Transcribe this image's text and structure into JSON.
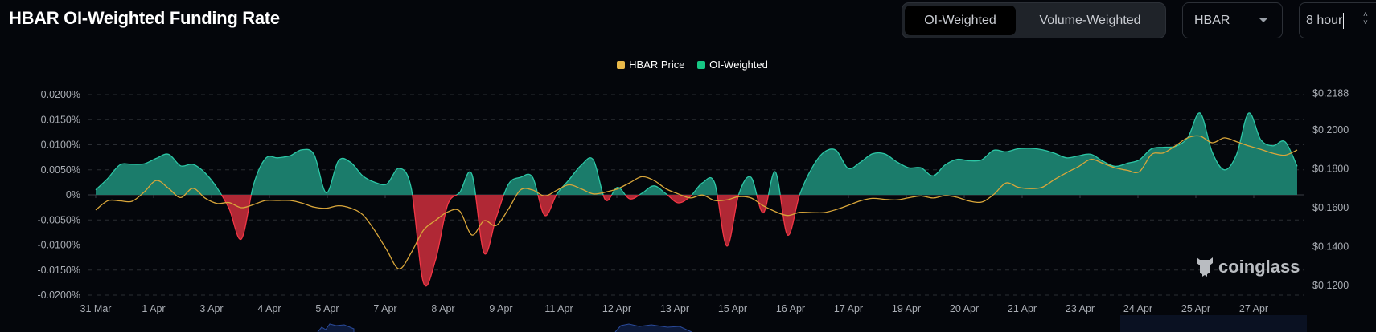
{
  "header": {
    "title": "HBAR OI-Weighted Funding Rate",
    "toggle": {
      "options": [
        "OI-Weighted",
        "Volume-Weighted"
      ],
      "active": "OI-Weighted"
    },
    "coin_select": {
      "value": "HBAR"
    },
    "interval_input": {
      "value": "8 hour"
    }
  },
  "watermark": "coinglass",
  "colors": {
    "background": "#04060b",
    "positive": "#1b7c6b",
    "positive_line": "#2cc6a5",
    "negative": "#b02835",
    "negative_line": "#f23645",
    "price": "#d9a63a"
  },
  "chart_data": {
    "type": "area",
    "legend": {
      "position": "top-center",
      "items": [
        {
          "label": "HBAR Price",
          "color": "#e9b949"
        },
        {
          "label": "OI-Weighted",
          "color": "#16c784"
        }
      ]
    },
    "grid": true,
    "x_tick_labels": [
      "31 Mar",
      "1 Apr",
      "3 Apr",
      "4 Apr",
      "5 Apr",
      "7 Apr",
      "8 Apr",
      "9 Apr",
      "11 Apr",
      "12 Apr",
      "13 Apr",
      "15 Apr",
      "16 Apr",
      "17 Apr",
      "19 Apr",
      "20 Apr",
      "21 Apr",
      "23 Apr",
      "24 Apr",
      "25 Apr",
      "27 Apr"
    ],
    "y_left": {
      "ylim": [
        -0.02,
        0.02
      ],
      "unit": "%",
      "tick_labels": [
        "0.0200%",
        "0.0150%",
        "0.0100%",
        "0.0050%",
        "0%",
        "-0.0050%",
        "-0.0100%",
        "-0.0150%",
        "-0.0200%"
      ]
    },
    "y_right": {
      "ylim": [
        0.12,
        0.2188
      ],
      "tick_labels": [
        "$0.2188",
        "$0.2000",
        "$0.1800",
        "$0.1600",
        "$0.1400",
        "$0.1200"
      ],
      "tick_values": [
        0.2188,
        0.2,
        0.18,
        0.16,
        0.14,
        0.12
      ]
    },
    "series": [
      {
        "name": "OI-Weighted",
        "axis": "left",
        "unit": "%",
        "values": [
          0.001,
          0.0033,
          0.006,
          0.0061,
          0.0062,
          0.0073,
          0.0081,
          0.0058,
          0.0061,
          0.0044,
          0.0014,
          -0.0028,
          -0.0088,
          0.002,
          0.0073,
          0.0074,
          0.0078,
          0.009,
          0.008,
          0.0004,
          0.0068,
          0.0065,
          0.0038,
          0.0025,
          0.0022,
          0.0053,
          0.0013,
          -0.0175,
          -0.013,
          -0.002,
          0.0005,
          0.0041,
          -0.0116,
          -0.0045,
          0.0021,
          0.0035,
          0.0035,
          -0.0041,
          0.0002,
          0.003,
          0.0059,
          0.007,
          -0.001,
          0.0015,
          -0.0008,
          0.0003,
          0.0018,
          0.0002,
          -0.0016,
          -0.0003,
          0.0024,
          0.0024,
          -0.0102,
          0.0002,
          0.0035,
          -0.0036,
          0.0046,
          -0.008,
          0.0,
          0.0053,
          0.0085,
          0.0089,
          0.0053,
          0.0065,
          0.0082,
          0.0082,
          0.0066,
          0.0054,
          0.0054,
          0.0038,
          0.006,
          0.0071,
          0.0068,
          0.007,
          0.0089,
          0.0086,
          0.0092,
          0.0093,
          0.009,
          0.0083,
          0.0074,
          0.0078,
          0.0081,
          0.0067,
          0.0057,
          0.0063,
          0.007,
          0.0092,
          0.0095,
          0.0097,
          0.0115,
          0.0163,
          0.0085,
          0.005,
          0.008,
          0.0163,
          0.011,
          0.0098,
          0.0106,
          0.0057
        ]
      },
      {
        "name": "HBAR Price",
        "axis": "right",
        "unit": "$",
        "values": [
          0.1588,
          0.1636,
          0.1635,
          0.1633,
          0.1681,
          0.174,
          0.17,
          0.1652,
          0.17,
          0.165,
          0.1622,
          0.1626,
          0.16,
          0.1616,
          0.1637,
          0.1637,
          0.1637,
          0.1624,
          0.1603,
          0.1597,
          0.161,
          0.1598,
          0.1564,
          0.1482,
          0.1381,
          0.1285,
          0.1369,
          0.1484,
          0.1535,
          0.1578,
          0.1582,
          0.146,
          0.1533,
          0.1509,
          0.1592,
          0.1691,
          0.1691,
          0.166,
          0.169,
          0.1718,
          0.1697,
          0.1671,
          0.168,
          0.1697,
          0.1728,
          0.1759,
          0.174,
          0.1697,
          0.1671,
          0.165,
          0.1665,
          0.1637,
          0.164,
          0.1657,
          0.165,
          0.161,
          0.158,
          0.156,
          0.1576,
          0.1575,
          0.1575,
          0.159,
          0.1612,
          0.1635,
          0.1648,
          0.1643,
          0.164,
          0.1651,
          0.166,
          0.165,
          0.1662,
          0.1653,
          0.1634,
          0.1629,
          0.1668,
          0.1727,
          0.1705,
          0.1698,
          0.1705,
          0.1745,
          0.178,
          0.1812,
          0.1849,
          0.1828,
          0.1805,
          0.1792,
          0.1785,
          0.1874,
          0.1882,
          0.192,
          0.196,
          0.1968,
          0.1934,
          0.1959,
          0.194,
          0.1918,
          0.19,
          0.188,
          0.187,
          0.1897
        ]
      }
    ]
  }
}
